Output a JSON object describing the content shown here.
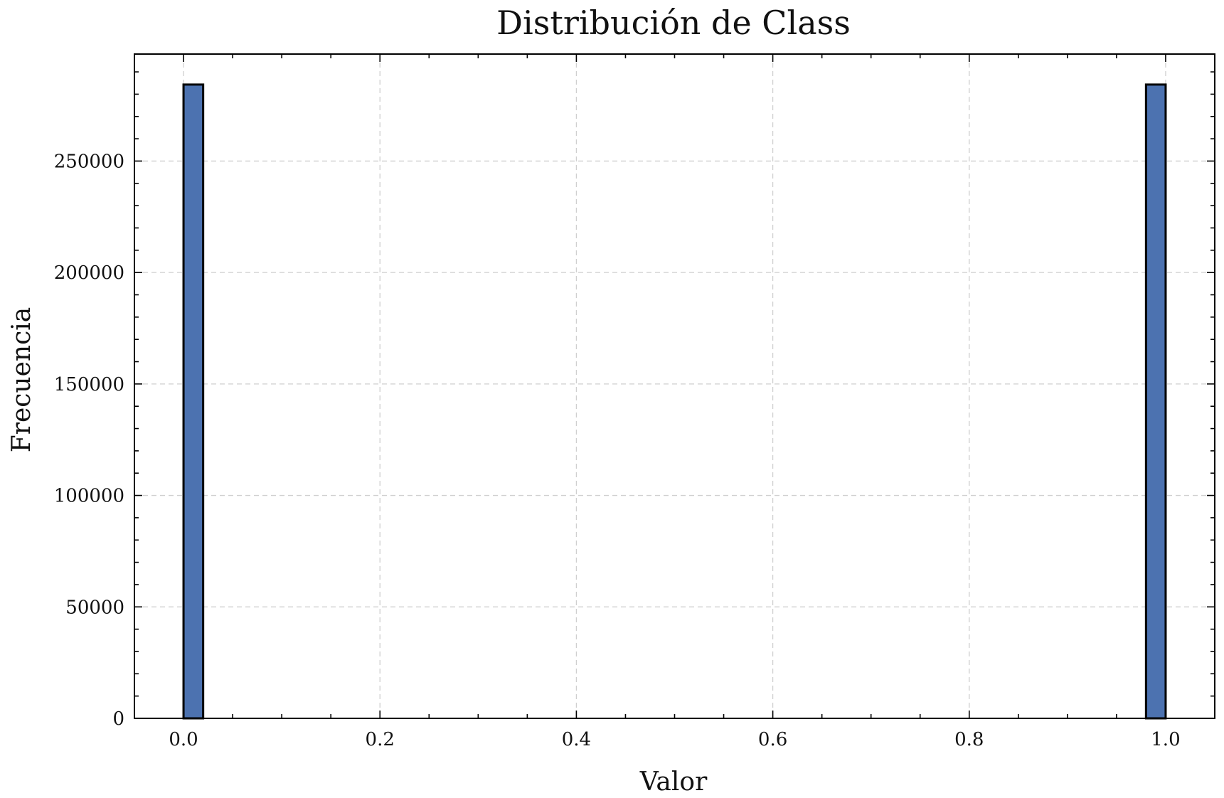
{
  "chart_data": {
    "type": "bar",
    "title": "Distribución de Class",
    "xlabel": "Valor",
    "ylabel": "Frecuencia",
    "xlim": [
      -0.05,
      1.05
    ],
    "ylim": [
      0,
      298000
    ],
    "xticks": [
      0.0,
      0.2,
      0.4,
      0.6,
      0.8,
      1.0
    ],
    "xtick_labels": [
      "0.0",
      "0.2",
      "0.4",
      "0.6",
      "0.8",
      "1.0"
    ],
    "yticks": [
      0,
      50000,
      100000,
      150000,
      200000,
      250000
    ],
    "ytick_labels": [
      "0",
      "50000",
      "100000",
      "150000",
      "200000",
      "250000"
    ],
    "bars": [
      {
        "x_start": 0.0,
        "x_end": 0.02,
        "value": 284315
      },
      {
        "x_start": 0.98,
        "x_end": 1.0,
        "value": 284315
      }
    ],
    "grid": true,
    "bar_color": "#4c72b0",
    "edge_color": "#000000",
    "grid_color": "#cfcfcf"
  }
}
